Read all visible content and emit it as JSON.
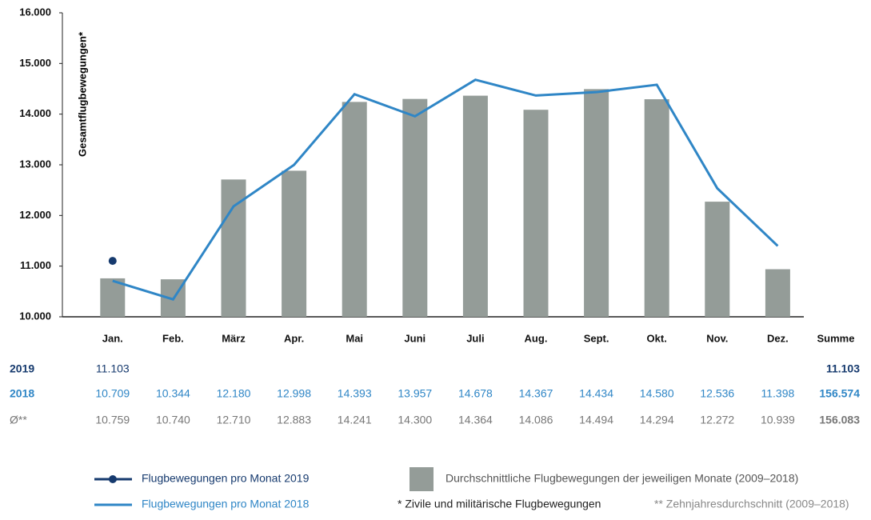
{
  "chart_data": {
    "type": "bar",
    "y_label": "Gesamtflugbewegungen*",
    "categories": [
      "Jan.",
      "Feb.",
      "März",
      "Apr.",
      "Mai",
      "Juni",
      "Juli",
      "Aug.",
      "Sept.",
      "Okt.",
      "Nov.",
      "Dez."
    ],
    "total_label": "Summe",
    "ylim": [
      10000,
      16000
    ],
    "yticks": [
      {
        "value": 10000,
        "label": "10.000"
      },
      {
        "value": 11000,
        "label": "11.000"
      },
      {
        "value": 12000,
        "label": "12.000"
      },
      {
        "value": 13000,
        "label": "13.000"
      },
      {
        "value": 14000,
        "label": "14.000"
      },
      {
        "value": 15000,
        "label": "15.000"
      },
      {
        "value": 16000,
        "label": "16.000"
      }
    ],
    "series": [
      {
        "name": "Flugbewegungen pro Monat 2019",
        "row_label": "2019",
        "type": "point",
        "color": "#163a6e",
        "values": [
          11103,
          null,
          null,
          null,
          null,
          null,
          null,
          null,
          null,
          null,
          null,
          null
        ],
        "value_labels": [
          "11.103",
          null,
          null,
          null,
          null,
          null,
          null,
          null,
          null,
          null,
          null,
          null
        ],
        "total": "11.103"
      },
      {
        "name": "Flugbewegungen pro Monat 2018",
        "row_label": "2018",
        "type": "line",
        "color": "#2f86c6",
        "values": [
          10709,
          10344,
          12180,
          12998,
          14393,
          13957,
          14678,
          14367,
          14434,
          14580,
          12536,
          11398
        ],
        "value_labels": [
          "10.709",
          "10.344",
          "12.180",
          "12.998",
          "14.393",
          "13.957",
          "14.678",
          "14.367",
          "14.434",
          "14.580",
          "12.536",
          "11.398"
        ],
        "total": "156.574"
      },
      {
        "name": "Durchschnittliche Flugbewegungen der jeweiligen Monate (2009–2018)",
        "row_label": "Ø**",
        "type": "bar",
        "color": "#949c98",
        "values": [
          10759,
          10740,
          12710,
          12883,
          14241,
          14300,
          14364,
          14086,
          14494,
          14294,
          12272,
          10939
        ],
        "value_labels": [
          "10.759",
          "10.740",
          "12.710",
          "12.883",
          "14.241",
          "14.300",
          "14.364",
          "14.086",
          "14.494",
          "14.294",
          "12.272",
          "10.939"
        ],
        "total": "156.083"
      }
    ],
    "footnotes": [
      "* Zivile und militärische Flugbewegungen",
      "** Zehnjahresdurchschnitt (2009–2018)"
    ]
  }
}
